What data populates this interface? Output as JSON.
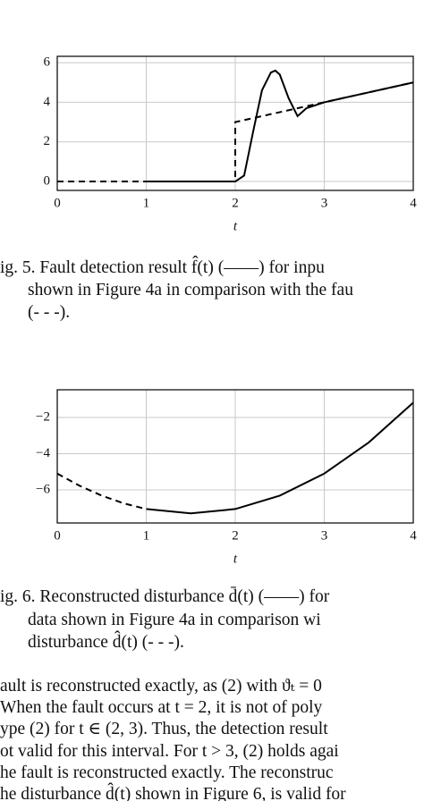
{
  "chart_data": [
    {
      "type": "line",
      "xlabel": "t",
      "xlim": [
        0,
        4
      ],
      "xticks": [
        0,
        1,
        2,
        3,
        4
      ],
      "ylim": [
        -0.45,
        6.32
      ],
      "yticks": [
        0,
        2,
        4,
        6
      ],
      "grid": true,
      "series": [
        {
          "color": "#000000",
          "dash": true,
          "x": [
            0,
            2,
            2,
            4
          ],
          "values": [
            0,
            0,
            3,
            5
          ]
        },
        {
          "color": "#000000",
          "dash": false,
          "x": [
            1,
            2,
            2.1,
            2.2,
            2.3,
            2.4,
            2.45,
            2.5,
            2.6,
            2.7,
            2.8,
            3,
            3.5,
            4
          ],
          "values": [
            0,
            0,
            0.3,
            2.5,
            4.6,
            5.5,
            5.6,
            5.4,
            4.2,
            3.3,
            3.7,
            4,
            4.5,
            5
          ]
        }
      ]
    },
    {
      "type": "line",
      "xlabel": "t",
      "xlim": [
        0,
        4
      ],
      "xticks": [
        0,
        1,
        2,
        3,
        4
      ],
      "ylim": [
        -7.83,
        -0.47
      ],
      "yticks": [
        {
          "value": -6,
          "label": "−6"
        },
        {
          "value": -4,
          "label": "−4"
        },
        {
          "value": -2,
          "label": "−2"
        }
      ],
      "grid": true,
      "series": [
        {
          "color": "#000000",
          "dash": true,
          "x": [
            0,
            0.25,
            0.5,
            0.75,
            1
          ],
          "values": [
            -5.1,
            -5.77,
            -6.32,
            -6.75,
            -7.06
          ]
        },
        {
          "color": "#000000",
          "dash": false,
          "x": [
            1,
            1.5,
            2,
            2.5,
            3,
            3.5,
            4
          ],
          "values": [
            -7.06,
            -7.3,
            -7.06,
            -6.32,
            -5.1,
            -3.38,
            -1.18
          ]
        }
      ]
    }
  ],
  "captions": [
    {
      "lines": [
        "ig. 5. Fault detection result f̂(t) (——) for inpu",
        "shown in Figure 4a in comparison with the fau",
        "(- - -)."
      ]
    },
    {
      "lines": [
        "ig. 6. Reconstructed disturbance d̄(t) (——) for",
        "data shown in Figure 4a in comparison wi",
        "disturbance d̂(t) (- - -)."
      ]
    }
  ],
  "body_text": [
    "ault is reconstructed exactly, as (2) with ϑₜ = 0",
    "When the fault occurs at t = 2, it is not of poly",
    "ype (2) for t ∈ (2, 3). Thus, the detection result",
    "ot valid for this interval. For t > 3, (2) holds agai",
    "he fault is reconstructed exactly. The reconstruc",
    "he disturbance d̂(t) shown in Figure 6, is valid for"
  ]
}
